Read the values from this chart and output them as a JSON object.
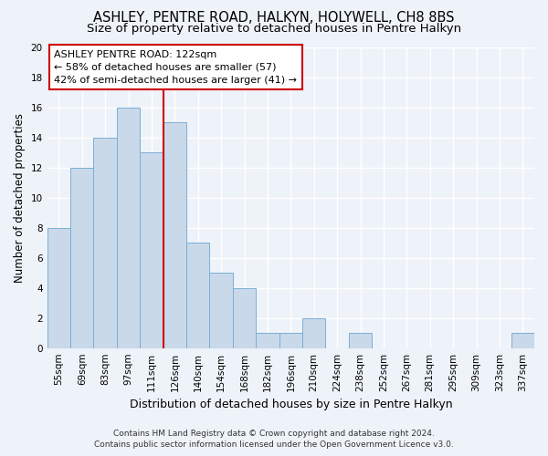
{
  "title": "ASHLEY, PENTRE ROAD, HALKYN, HOLYWELL, CH8 8BS",
  "subtitle": "Size of property relative to detached houses in Pentre Halkyn",
  "xlabel": "Distribution of detached houses by size in Pentre Halkyn",
  "ylabel": "Number of detached properties",
  "footer_line1": "Contains HM Land Registry data © Crown copyright and database right 2024.",
  "footer_line2": "Contains public sector information licensed under the Open Government Licence v3.0.",
  "bin_labels": [
    "55sqm",
    "69sqm",
    "83sqm",
    "97sqm",
    "111sqm",
    "126sqm",
    "140sqm",
    "154sqm",
    "168sqm",
    "182sqm",
    "196sqm",
    "210sqm",
    "224sqm",
    "238sqm",
    "252sqm",
    "267sqm",
    "281sqm",
    "295sqm",
    "309sqm",
    "323sqm",
    "337sqm"
  ],
  "bar_values": [
    8,
    12,
    14,
    16,
    13,
    15,
    7,
    5,
    4,
    1,
    1,
    2,
    0,
    1,
    0,
    0,
    0,
    0,
    0,
    0,
    1
  ],
  "bar_color": "#c9d9ea",
  "bar_edge_color": "#7bafd4",
  "vline_x": 4.5,
  "vline_color": "#cc0000",
  "annotation_title": "ASHLEY PENTRE ROAD: 122sqm",
  "annotation_line2": "← 58% of detached houses are smaller (57)",
  "annotation_line3": "42% of semi-detached houses are larger (41) →",
  "annotation_box_color": "white",
  "annotation_box_edge": "#cc0000",
  "ylim": [
    0,
    20
  ],
  "yticks": [
    0,
    2,
    4,
    6,
    8,
    10,
    12,
    14,
    16,
    18,
    20
  ],
  "background_color": "#eef2f9",
  "grid_color": "white",
  "title_fontsize": 10.5,
  "subtitle_fontsize": 9.5,
  "xlabel_fontsize": 9,
  "ylabel_fontsize": 8.5,
  "tick_fontsize": 7.5,
  "footer_fontsize": 6.5
}
